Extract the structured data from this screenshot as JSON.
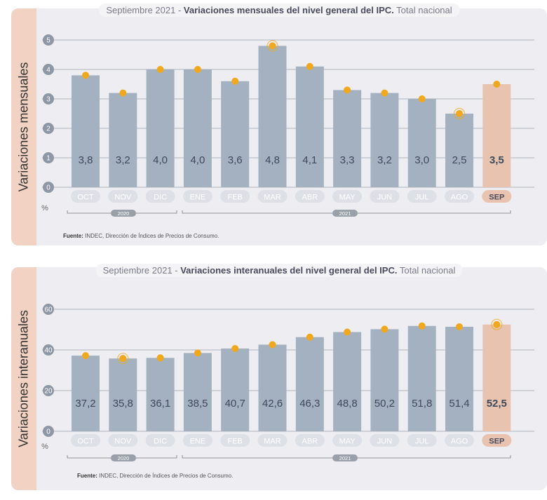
{
  "charts": {
    "monthly": {
      "title_prefix": "Septiembre 2021 - ",
      "title_bold": "Variaciones mensuales del nivel general del IPC.",
      "title_suffix": " Total nacional",
      "side_label": "Variaciones mensuales",
      "unit": "%",
      "source_bold": "Fuente:",
      "source_text": " INDEC, Dirección de Índices de Precios de Consumo.",
      "year_2020": "2020",
      "year_2021": "2021"
    },
    "annual": {
      "title_prefix": "Septiembre 2021 - ",
      "title_bold": "Variaciones interanuales del nivel general del IPC.",
      "title_suffix": " Total nacional",
      "side_label": "Variaciones interanuales",
      "unit": "%",
      "source_bold": "Fuente:",
      "source_text": " INDEC, Dirección de Índices de Precios de Consumo.",
      "year_2020": "2020",
      "year_2021": "2021"
    }
  },
  "colors": {
    "bar": "#a4b1c0",
    "highlight_bar": "#e8c4b0",
    "dot": "#f0a81e",
    "value_text": "#3e4a5c",
    "month_pill": "#dde1e7",
    "month_text": "#ffffff",
    "highlight_pill": "#e8c4b0",
    "highlight_text": "#4a4a5e",
    "grid": "#9aa0aa",
    "tick_bubble": "#8e97a6"
  },
  "chart_data": [
    {
      "type": "bar",
      "categories": [
        "OCT",
        "NOV",
        "DIC",
        "ENE",
        "FEB",
        "MAR",
        "ABR",
        "MAY",
        "JUN",
        "JUL",
        "AGO",
        "SEP"
      ],
      "values": [
        3.8,
        3.2,
        4.0,
        4.0,
        3.6,
        4.8,
        4.1,
        3.3,
        3.2,
        3.0,
        2.5,
        3.5
      ],
      "labels": [
        "3,8",
        "3,2",
        "4,0",
        "4,0",
        "3,6",
        "4,8",
        "4,1",
        "3,3",
        "3,2",
        "3,0",
        "2,5",
        "3,5"
      ],
      "yticks": [
        0,
        1,
        2,
        3,
        4,
        5
      ],
      "ylim": [
        0,
        5
      ],
      "highlight_index": 11,
      "dot_rings": [
        5,
        10
      ],
      "ylabel": "Variaciones mensuales",
      "grid": true
    },
    {
      "type": "bar",
      "categories": [
        "OCT",
        "NOV",
        "DIC",
        "ENE",
        "FEB",
        "MAR",
        "ABR",
        "MAY",
        "JUN",
        "JUL",
        "AGO",
        "SEP"
      ],
      "values": [
        37.2,
        35.8,
        36.1,
        38.5,
        40.7,
        42.6,
        46.3,
        48.8,
        50.2,
        51.8,
        51.4,
        52.5
      ],
      "labels": [
        "37,2",
        "35,8",
        "36,1",
        "38,5",
        "40,7",
        "42,6",
        "46,3",
        "48,8",
        "50,2",
        "51,8",
        "51,4",
        "52,5"
      ],
      "yticks": [
        0,
        20,
        40,
        60
      ],
      "ylim": [
        0,
        60
      ],
      "highlight_index": 11,
      "dot_rings": [
        1,
        11
      ],
      "ylabel": "Variaciones interanuales",
      "grid": true
    }
  ]
}
